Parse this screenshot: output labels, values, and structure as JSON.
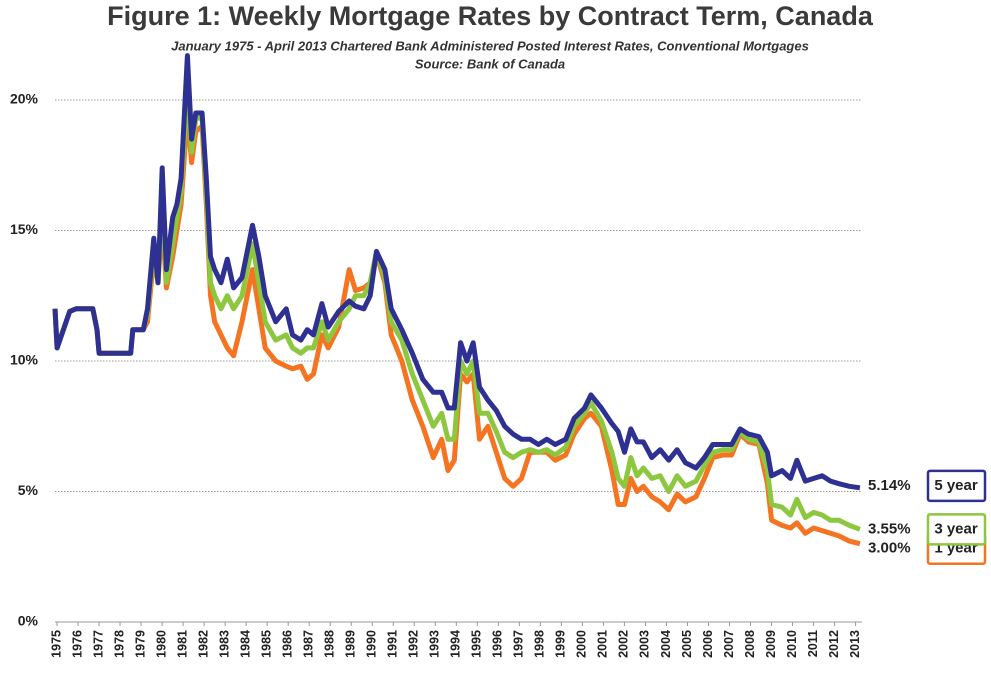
{
  "chart_data": {
    "type": "line",
    "title": "Figure 1: Weekly Mortgage Rates by Contract Term, Canada",
    "subtitle": [
      "January 1975 - April 2013 Chartered Bank Administered Posted Interest Rates, Conventional Mortgages",
      "Source: Bank of Canada"
    ],
    "x": [
      1975.0,
      1975.1,
      1975.4,
      1975.7,
      1976.0,
      1976.8,
      1977.0,
      1977.1,
      1978.6,
      1978.7,
      1979.2,
      1979.4,
      1979.7,
      1979.9,
      1980.1,
      1980.3,
      1980.6,
      1980.8,
      1981.0,
      1981.3,
      1981.5,
      1981.7,
      1982.0,
      1982.2,
      1982.4,
      1982.6,
      1982.9,
      1983.2,
      1983.5,
      1983.9,
      1984.4,
      1984.7,
      1985.0,
      1985.5,
      1986.0,
      1986.3,
      1986.7,
      1987.0,
      1987.3,
      1987.7,
      1988.0,
      1988.5,
      1989.0,
      1989.3,
      1989.7,
      1990.0,
      1990.3,
      1990.7,
      1991.0,
      1991.5,
      1992.0,
      1992.5,
      1993.0,
      1993.4,
      1993.7,
      1994.0,
      1994.3,
      1994.6,
      1994.9,
      1995.2,
      1995.6,
      1996.0,
      1996.4,
      1996.8,
      1997.2,
      1997.6,
      1998.0,
      1998.4,
      1998.8,
      1999.3,
      1999.7,
      2000.2,
      2000.5,
      2001.0,
      2001.5,
      2001.8,
      2002.1,
      2002.4,
      2002.7,
      2003.0,
      2003.4,
      2003.8,
      2004.2,
      2004.6,
      2005.0,
      2005.5,
      2005.9,
      2006.3,
      2006.8,
      2007.2,
      2007.6,
      2008.0,
      2008.5,
      2008.9,
      2009.1,
      2009.6,
      2010.0,
      2010.3,
      2010.7,
      2011.1,
      2011.5,
      2011.9,
      2012.3,
      2012.8,
      2013.3
    ],
    "series": [
      {
        "name": "1 year",
        "color": "#f47421",
        "values": [
          12.0,
          10.5,
          11.2,
          11.9,
          12.0,
          12.0,
          11.2,
          10.3,
          10.3,
          11.2,
          11.2,
          11.5,
          14.0,
          13.0,
          15.5,
          12.8,
          14.0,
          15.0,
          16.0,
          19.5,
          17.6,
          18.8,
          19.0,
          16.0,
          12.5,
          11.5,
          11.0,
          10.5,
          10.2,
          11.5,
          13.5,
          12.0,
          10.5,
          10.0,
          9.8,
          9.7,
          9.8,
          9.3,
          9.5,
          11.0,
          10.5,
          11.3,
          13.5,
          12.7,
          12.8,
          13.0,
          14.1,
          13.0,
          11.0,
          10.0,
          8.5,
          7.5,
          6.3,
          7.0,
          5.8,
          6.2,
          9.5,
          9.2,
          9.5,
          7.0,
          7.5,
          6.5,
          5.5,
          5.2,
          5.5,
          6.5,
          6.5,
          6.5,
          6.2,
          6.4,
          7.2,
          7.8,
          8.0,
          7.5,
          5.8,
          4.5,
          4.5,
          5.5,
          5.0,
          5.2,
          4.8,
          4.6,
          4.3,
          4.9,
          4.6,
          4.8,
          5.5,
          6.3,
          6.4,
          6.4,
          7.2,
          6.9,
          6.8,
          5.3,
          3.9,
          3.7,
          3.6,
          3.8,
          3.4,
          3.6,
          3.5,
          3.4,
          3.3,
          3.1,
          3.0
        ],
        "value_labels": [
          null,
          null,
          null,
          null,
          null,
          null,
          null,
          null,
          null,
          null,
          null,
          null,
          null,
          null,
          null,
          null,
          null,
          null,
          null,
          null,
          null,
          null,
          null,
          null,
          null,
          null,
          null,
          null,
          null,
          null,
          null,
          null,
          null,
          null,
          null,
          null,
          null,
          null,
          null,
          null,
          null,
          null,
          null,
          null,
          null,
          null,
          null,
          null,
          null,
          null,
          null,
          null,
          null,
          null,
          null,
          null,
          null,
          null,
          null,
          null,
          null,
          null,
          null,
          null,
          null,
          null,
          null,
          null,
          null,
          null,
          null,
          null,
          null,
          null,
          null,
          null,
          null,
          null,
          null,
          null,
          null,
          null,
          null,
          null,
          null,
          null,
          null,
          null,
          null,
          null,
          null,
          null,
          null,
          null,
          null,
          null,
          null,
          null,
          null,
          null,
          null,
          null,
          null,
          null,
          "3.00%"
        ]
      },
      {
        "name": "3 year",
        "color": "#8dc63f",
        "values": [
          12.0,
          10.5,
          11.2,
          11.9,
          12.0,
          12.0,
          11.2,
          10.3,
          10.3,
          11.2,
          11.2,
          11.8,
          14.3,
          13.0,
          16.5,
          13.0,
          14.5,
          15.5,
          16.5,
          20.5,
          18.0,
          19.3,
          19.3,
          16.5,
          13.0,
          12.5,
          12.0,
          12.5,
          12.0,
          12.5,
          14.5,
          13.0,
          11.5,
          10.8,
          11.0,
          10.5,
          10.3,
          10.5,
          10.5,
          11.5,
          10.8,
          11.5,
          12.0,
          12.5,
          12.5,
          13.0,
          14.2,
          13.2,
          11.5,
          10.8,
          9.5,
          8.5,
          7.5,
          8.0,
          7.0,
          7.0,
          10.0,
          9.5,
          10.0,
          8.0,
          8.0,
          7.3,
          6.5,
          6.3,
          6.5,
          6.6,
          6.5,
          6.6,
          6.4,
          6.7,
          7.5,
          8.0,
          8.4,
          7.7,
          6.5,
          5.5,
          5.2,
          6.3,
          5.6,
          5.9,
          5.5,
          5.6,
          5.0,
          5.6,
          5.2,
          5.4,
          6.0,
          6.5,
          6.6,
          6.6,
          7.3,
          7.0,
          6.9,
          5.8,
          4.5,
          4.4,
          4.1,
          4.7,
          4.0,
          4.2,
          4.1,
          3.9,
          3.9,
          3.7,
          3.55
        ],
        "value_labels": [
          null,
          null,
          null,
          null,
          null,
          null,
          null,
          null,
          null,
          null,
          null,
          null,
          null,
          null,
          null,
          null,
          null,
          null,
          null,
          null,
          null,
          null,
          null,
          null,
          null,
          null,
          null,
          null,
          null,
          null,
          null,
          null,
          null,
          null,
          null,
          null,
          null,
          null,
          null,
          null,
          null,
          null,
          null,
          null,
          null,
          null,
          null,
          null,
          null,
          null,
          null,
          null,
          null,
          null,
          null,
          null,
          null,
          null,
          null,
          null,
          null,
          null,
          null,
          null,
          null,
          null,
          null,
          null,
          null,
          null,
          null,
          null,
          null,
          null,
          null,
          null,
          null,
          null,
          null,
          null,
          null,
          null,
          null,
          null,
          null,
          null,
          null,
          null,
          null,
          null,
          null,
          null,
          null,
          null,
          null,
          null,
          null,
          null,
          null,
          null,
          null,
          null,
          null,
          null,
          "3.55%"
        ]
      },
      {
        "name": "5 year",
        "color": "#2e3192",
        "values": [
          12.0,
          10.5,
          11.2,
          11.9,
          12.0,
          12.0,
          11.2,
          10.3,
          10.3,
          11.2,
          11.2,
          12.0,
          14.7,
          13.0,
          17.4,
          13.5,
          15.5,
          16.0,
          17.0,
          21.7,
          18.5,
          19.5,
          19.5,
          17.0,
          14.0,
          13.5,
          13.0,
          13.9,
          12.8,
          13.2,
          15.2,
          14.0,
          12.5,
          11.5,
          12.0,
          11.0,
          10.8,
          11.2,
          11.0,
          12.2,
          11.3,
          11.9,
          12.3,
          12.1,
          12.0,
          12.5,
          14.2,
          13.5,
          12.0,
          11.2,
          10.3,
          9.3,
          8.8,
          8.8,
          8.2,
          8.2,
          10.7,
          10.0,
          10.7,
          9.0,
          8.5,
          8.1,
          7.5,
          7.2,
          7.0,
          7.0,
          6.8,
          7.0,
          6.8,
          7.0,
          7.8,
          8.2,
          8.7,
          8.2,
          7.6,
          7.3,
          6.5,
          7.4,
          6.9,
          6.9,
          6.3,
          6.6,
          6.2,
          6.6,
          6.1,
          5.9,
          6.3,
          6.8,
          6.8,
          6.8,
          7.4,
          7.2,
          7.1,
          6.5,
          5.6,
          5.8,
          5.5,
          6.2,
          5.4,
          5.5,
          5.6,
          5.4,
          5.3,
          5.2,
          5.14
        ],
        "value_labels": [
          null,
          null,
          null,
          null,
          null,
          null,
          null,
          null,
          null,
          null,
          null,
          null,
          null,
          null,
          null,
          null,
          null,
          null,
          null,
          null,
          null,
          null,
          null,
          null,
          null,
          null,
          null,
          null,
          null,
          null,
          null,
          null,
          null,
          null,
          null,
          null,
          null,
          null,
          null,
          null,
          null,
          null,
          null,
          null,
          null,
          null,
          null,
          null,
          null,
          null,
          null,
          null,
          null,
          null,
          null,
          null,
          null,
          null,
          null,
          null,
          null,
          null,
          null,
          null,
          null,
          null,
          null,
          null,
          null,
          null,
          null,
          null,
          null,
          null,
          null,
          null,
          null,
          null,
          null,
          null,
          null,
          null,
          null,
          null,
          null,
          null,
          null,
          null,
          null,
          null,
          null,
          null,
          null,
          null,
          null,
          null,
          null,
          null,
          null,
          null,
          null,
          null,
          null,
          null,
          "5.14%"
        ]
      }
    ],
    "xlim": [
      1975,
      2013.4
    ],
    "xticks": [
      1975,
      1976,
      1977,
      1978,
      1979,
      1980,
      1981,
      1982,
      1983,
      1984,
      1985,
      1986,
      1987,
      1988,
      1989,
      1990,
      1991,
      1992,
      1993,
      1994,
      1995,
      1996,
      1997,
      1998,
      1999,
      2000,
      2001,
      2002,
      2003,
      2004,
      2005,
      2006,
      2007,
      2008,
      2009,
      2010,
      2011,
      2012,
      2013
    ],
    "ylim": [
      0,
      22
    ],
    "yticks": [
      {
        "value": 0,
        "label": "0%"
      },
      {
        "value": 5,
        "label": "5%"
      },
      {
        "value": 10,
        "label": "10%"
      },
      {
        "value": 15,
        "label": "15%"
      },
      {
        "value": 20,
        "label": "20%"
      }
    ],
    "grid": true
  }
}
